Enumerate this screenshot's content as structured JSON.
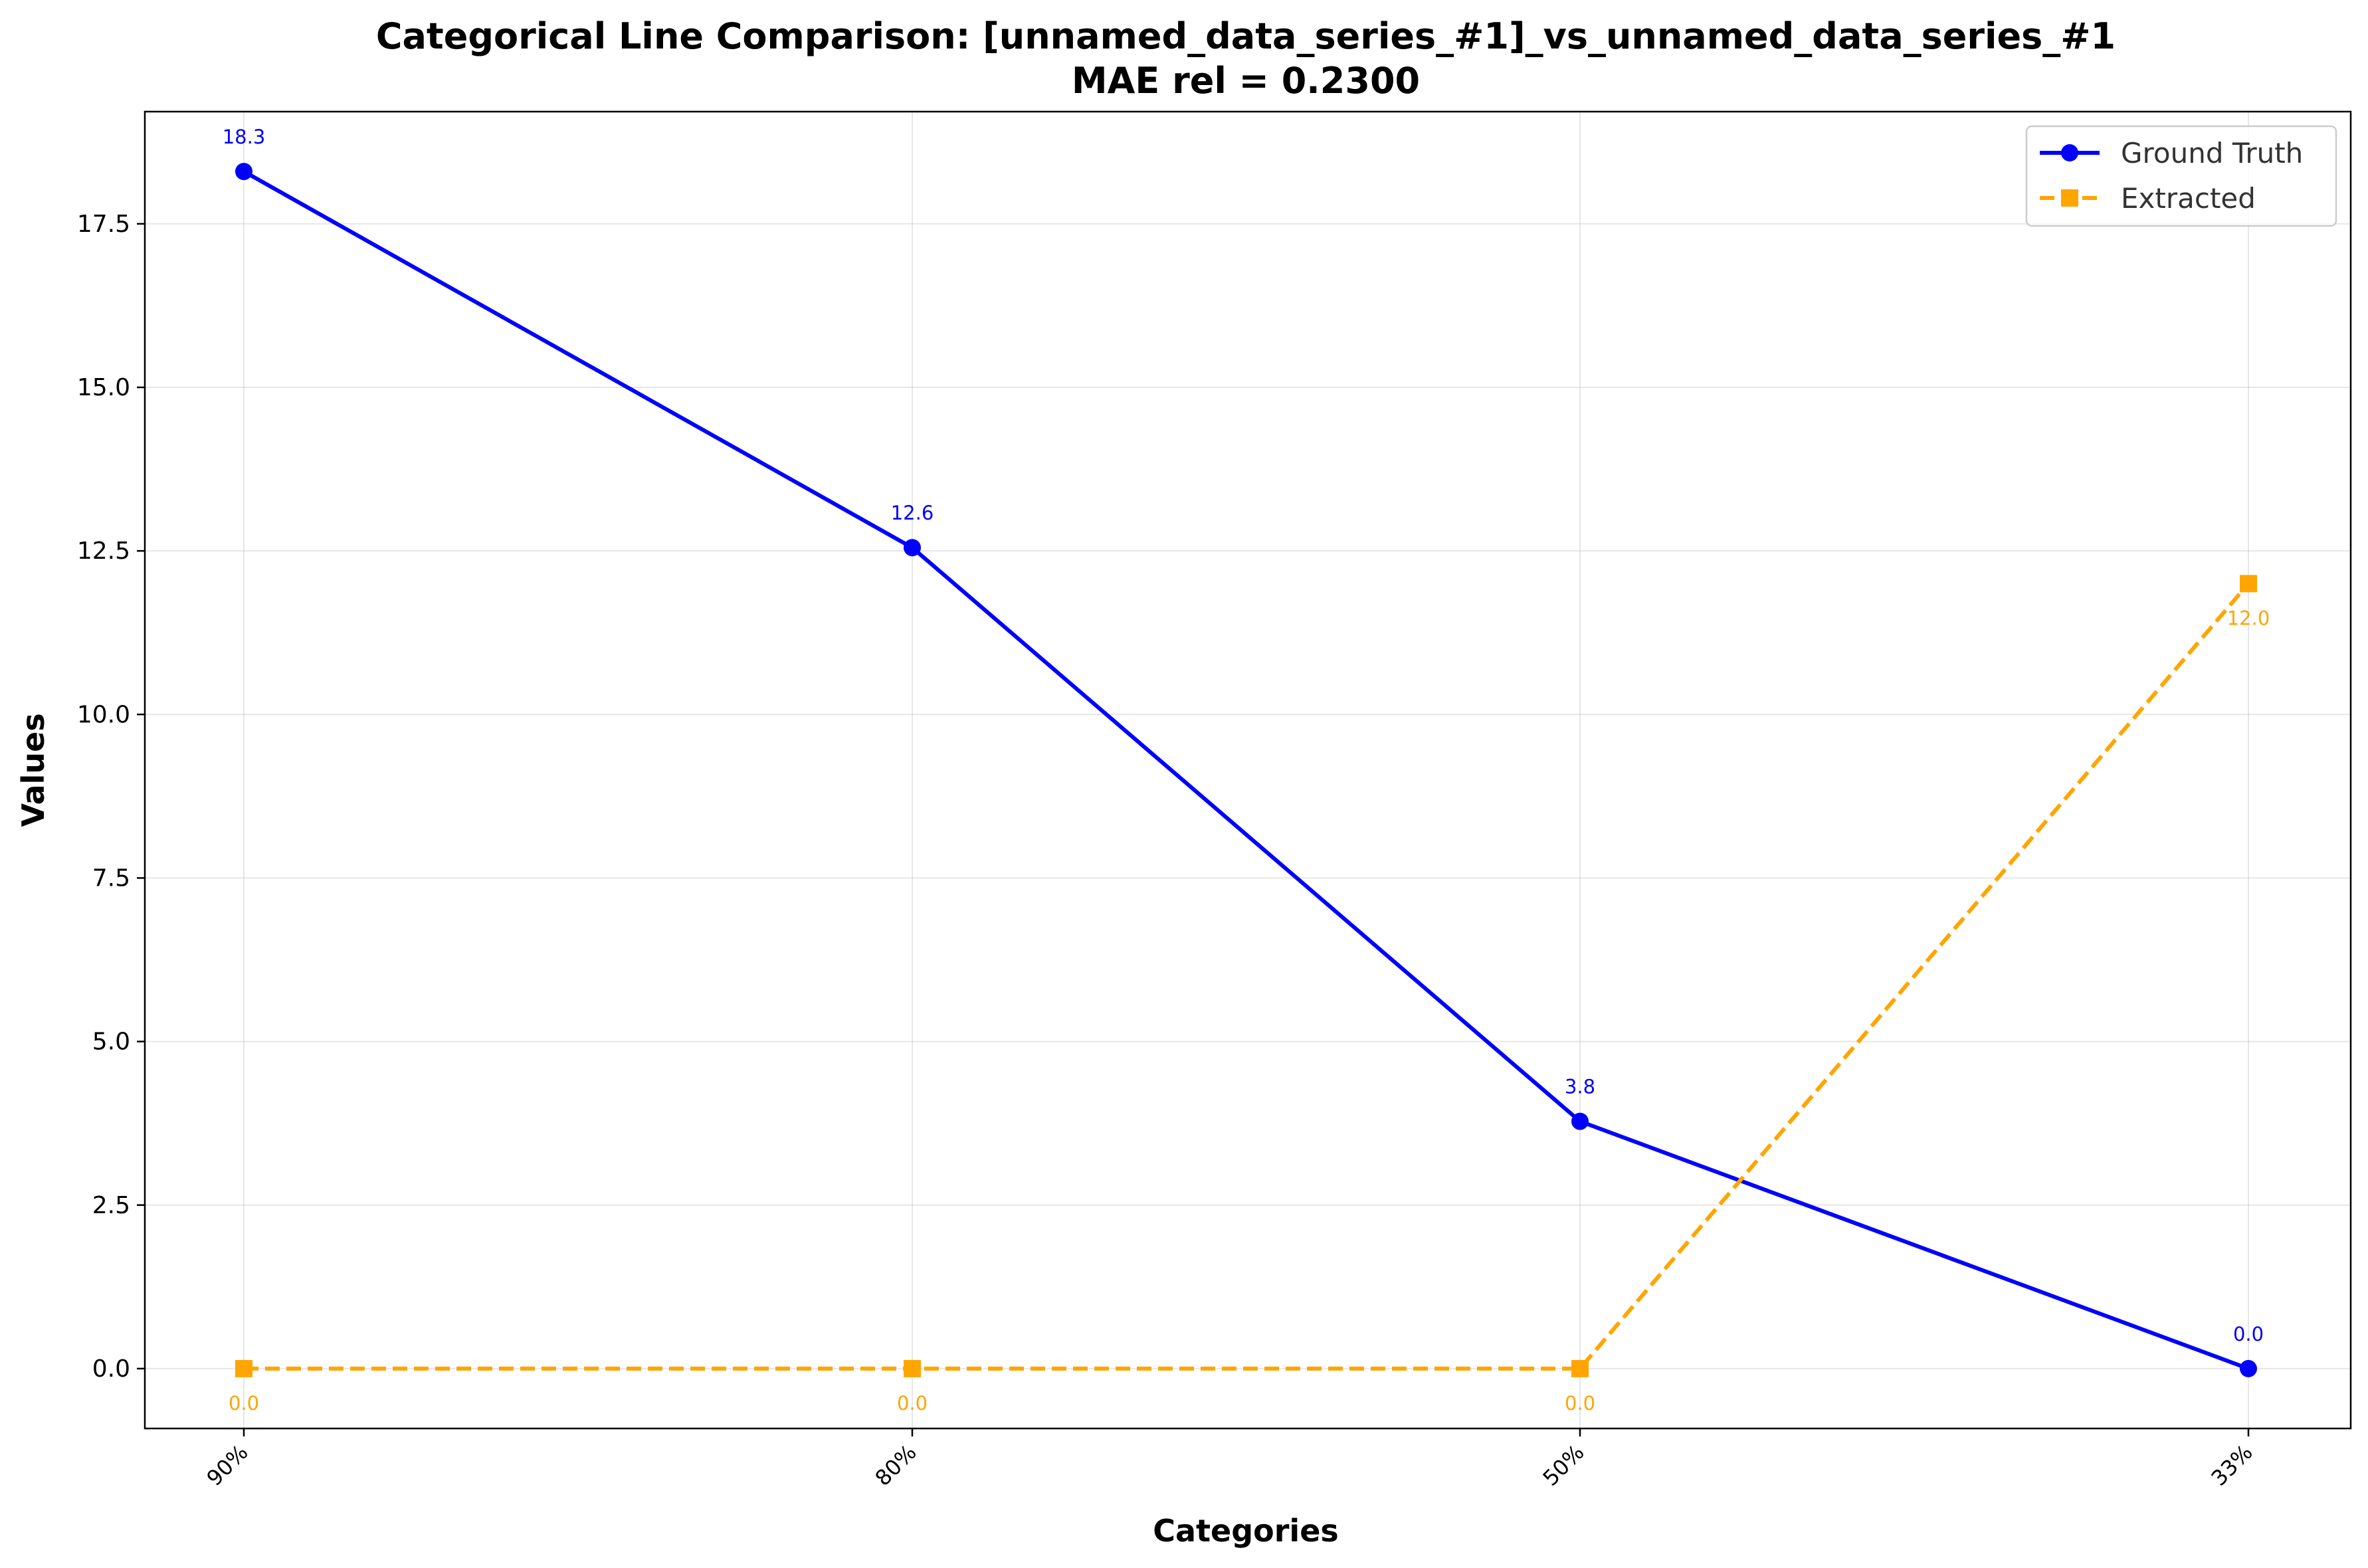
{
  "chart_data": {
    "type": "line",
    "title": "Categorical Line Comparison: [unnamed_data_series_#1]_vs_unnamed_data_series_#1",
    "subtitle": "MAE rel = 0.2300",
    "xlabel": "Categories",
    "ylabel": "Values",
    "categories": [
      "90%",
      "80%",
      "50%",
      "33%"
    ],
    "ylim": [
      -0.915,
      19.215
    ],
    "yticks": [
      0.0,
      2.5,
      5.0,
      7.5,
      10.0,
      12.5,
      15.0,
      17.5
    ],
    "ytick_labels": [
      "0.0",
      "2.5",
      "5.0",
      "7.5",
      "10.0",
      "12.5",
      "15.0",
      "17.5"
    ],
    "grid": true,
    "legend_position": "top-right",
    "series": [
      {
        "name": "Ground Truth",
        "values": [
          18.3,
          12.55,
          3.78,
          0.0
        ],
        "labels": [
          "18.3",
          "12.6",
          "3.8",
          "0.0"
        ],
        "color": "#0000ff",
        "style": "solid",
        "marker": "circle",
        "label_position": "above"
      },
      {
        "name": "Extracted",
        "values": [
          0.0,
          0.0,
          0.0,
          12.0
        ],
        "labels": [
          "0.0",
          "0.0",
          "0.0",
          "12.0"
        ],
        "color": "#ffa500",
        "style": "dashed",
        "marker": "square",
        "label_position": "below"
      }
    ]
  }
}
